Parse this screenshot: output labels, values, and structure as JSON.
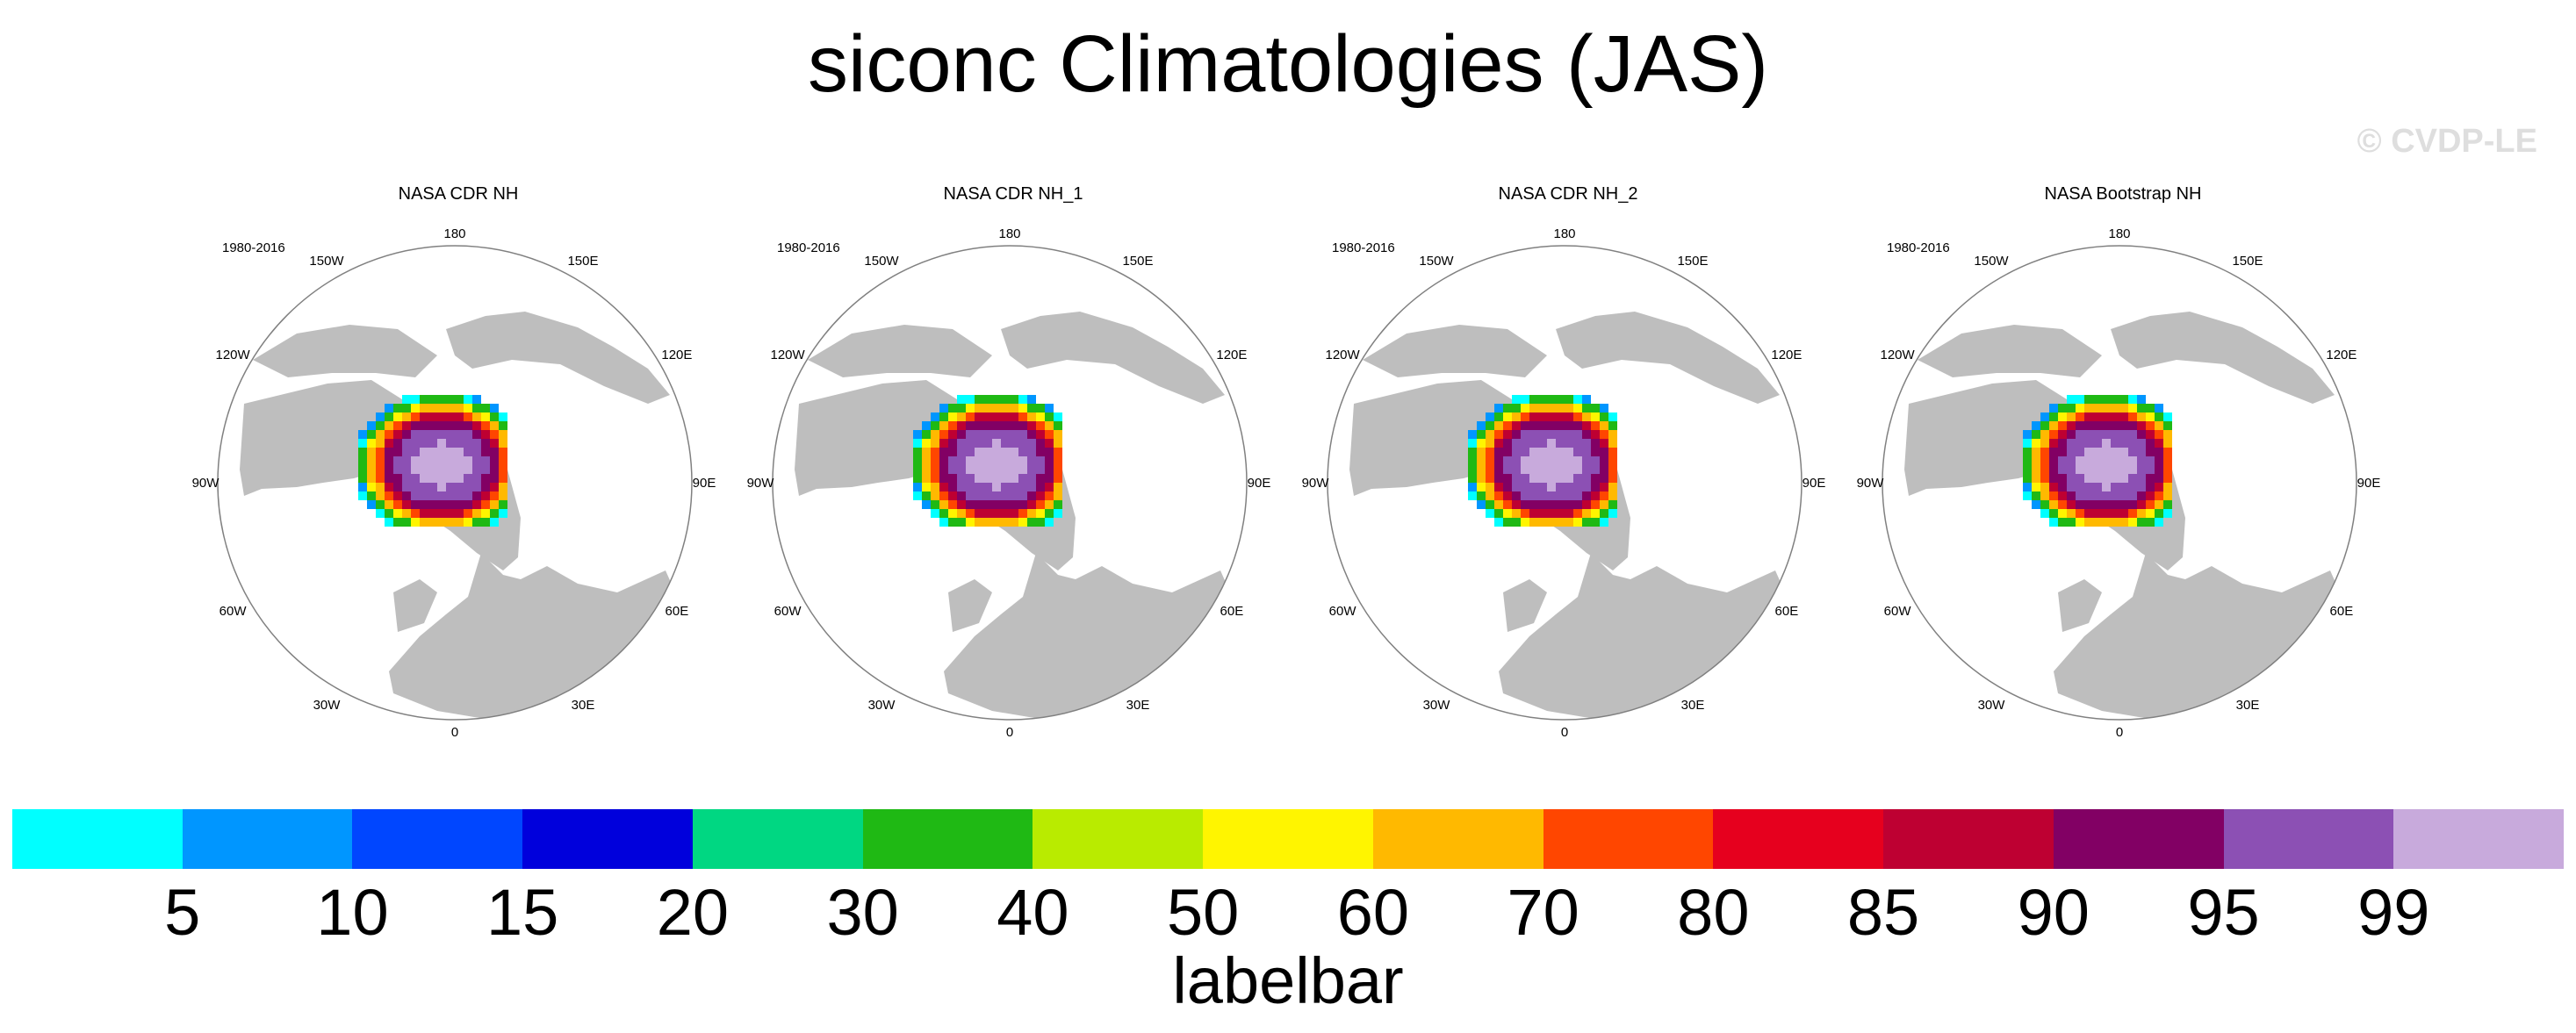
{
  "title": "siconc Climatologies (JAS)",
  "watermark": "© CVDP-LE",
  "panels": [
    {
      "title": "NASA CDR NH",
      "period": "1980-2016"
    },
    {
      "title": "NASA CDR NH_1",
      "period": "1980-2016"
    },
    {
      "title": "NASA CDR NH_2",
      "period": "1980-2016"
    },
    {
      "title": "NASA Bootstrap NH",
      "period": "1980-2016"
    }
  ],
  "longitude_labels": {
    "lon_180": "180",
    "lon_150e": "150E",
    "lon_120e": "120E",
    "lon_90e": "90E",
    "lon_60e": "60E",
    "lon_30e": "30E",
    "lon_0": "0",
    "lon_30w": "30W",
    "lon_60w": "60W",
    "lon_90w": "90W",
    "lon_120w": "120W",
    "lon_150w": "150W"
  },
  "colorbar": {
    "label": "labelbar",
    "ticks": [
      "5",
      "10",
      "15",
      "20",
      "30",
      "40",
      "50",
      "60",
      "70",
      "80",
      "85",
      "90",
      "95",
      "99"
    ],
    "colors": [
      "#00ffff",
      "#0096ff",
      "#0046ff",
      "#0000dc",
      "#00d782",
      "#1fb914",
      "#b9eb00",
      "#fff500",
      "#ffb900",
      "#ff4600",
      "#e6001e",
      "#be0032",
      "#820064",
      "#8c50b4",
      "#c8aadc"
    ]
  },
  "colors": {
    "land": "#bebebe",
    "ocean": "#ffffff",
    "border": "#808080"
  }
}
